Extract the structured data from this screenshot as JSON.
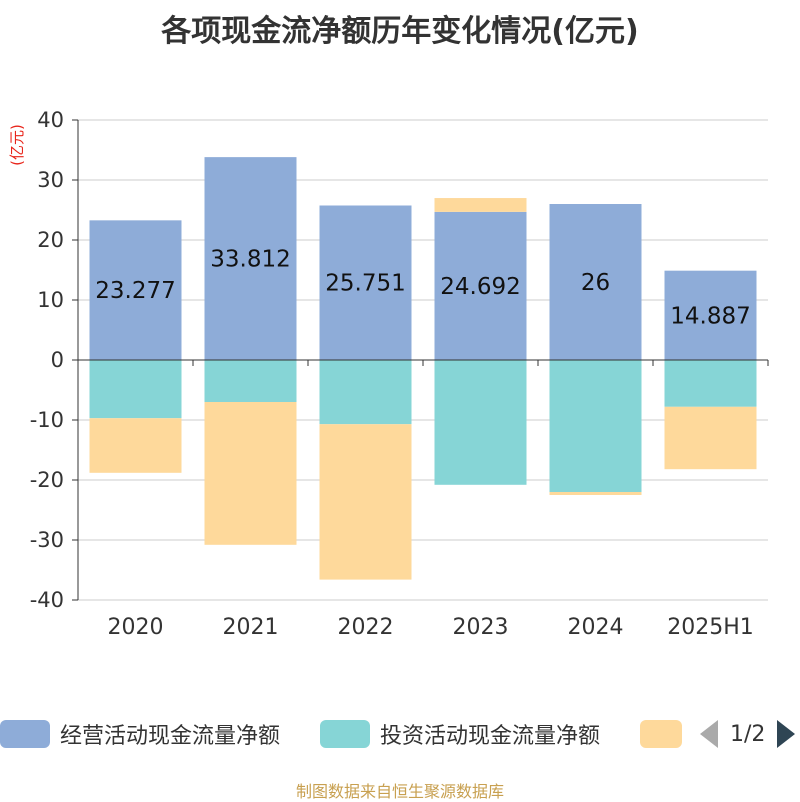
{
  "title": "各项现金流净额历年变化情况(亿元)",
  "source": "制图数据来自恒生聚源数据库",
  "legend_pager": "1/2",
  "chart_data": {
    "type": "bar",
    "stacked": true,
    "title": "各项现金流净额历年变化情况(亿元)",
    "ylabel": "(亿元)",
    "ylim": [
      -40,
      40
    ],
    "yticks": [
      40,
      30,
      20,
      10,
      0,
      -10,
      -20,
      -30,
      -40
    ],
    "grid": true,
    "legend_position": "bottom",
    "categories": [
      "2020",
      "2021",
      "2022",
      "2023",
      "2024",
      "2025H1"
    ],
    "series": [
      {
        "name": "经营活动现金流量净额",
        "color": "#8eacd8",
        "values": [
          23.277,
          33.812,
          25.751,
          24.692,
          26,
          14.887
        ],
        "labels": [
          "23.277",
          "33.812",
          "25.751",
          "24.692",
          "26",
          "14.887"
        ]
      },
      {
        "name": "投资活动现金流量净额",
        "color": "#86d5d6",
        "values": [
          -9.7,
          -7.0,
          -10.7,
          -20.8,
          -22.0,
          -7.8
        ]
      },
      {
        "name": "",
        "color": "#fed99b",
        "values": [
          -9.1,
          -23.8,
          -25.9,
          2.3,
          -0.5,
          -10.4
        ]
      }
    ]
  }
}
